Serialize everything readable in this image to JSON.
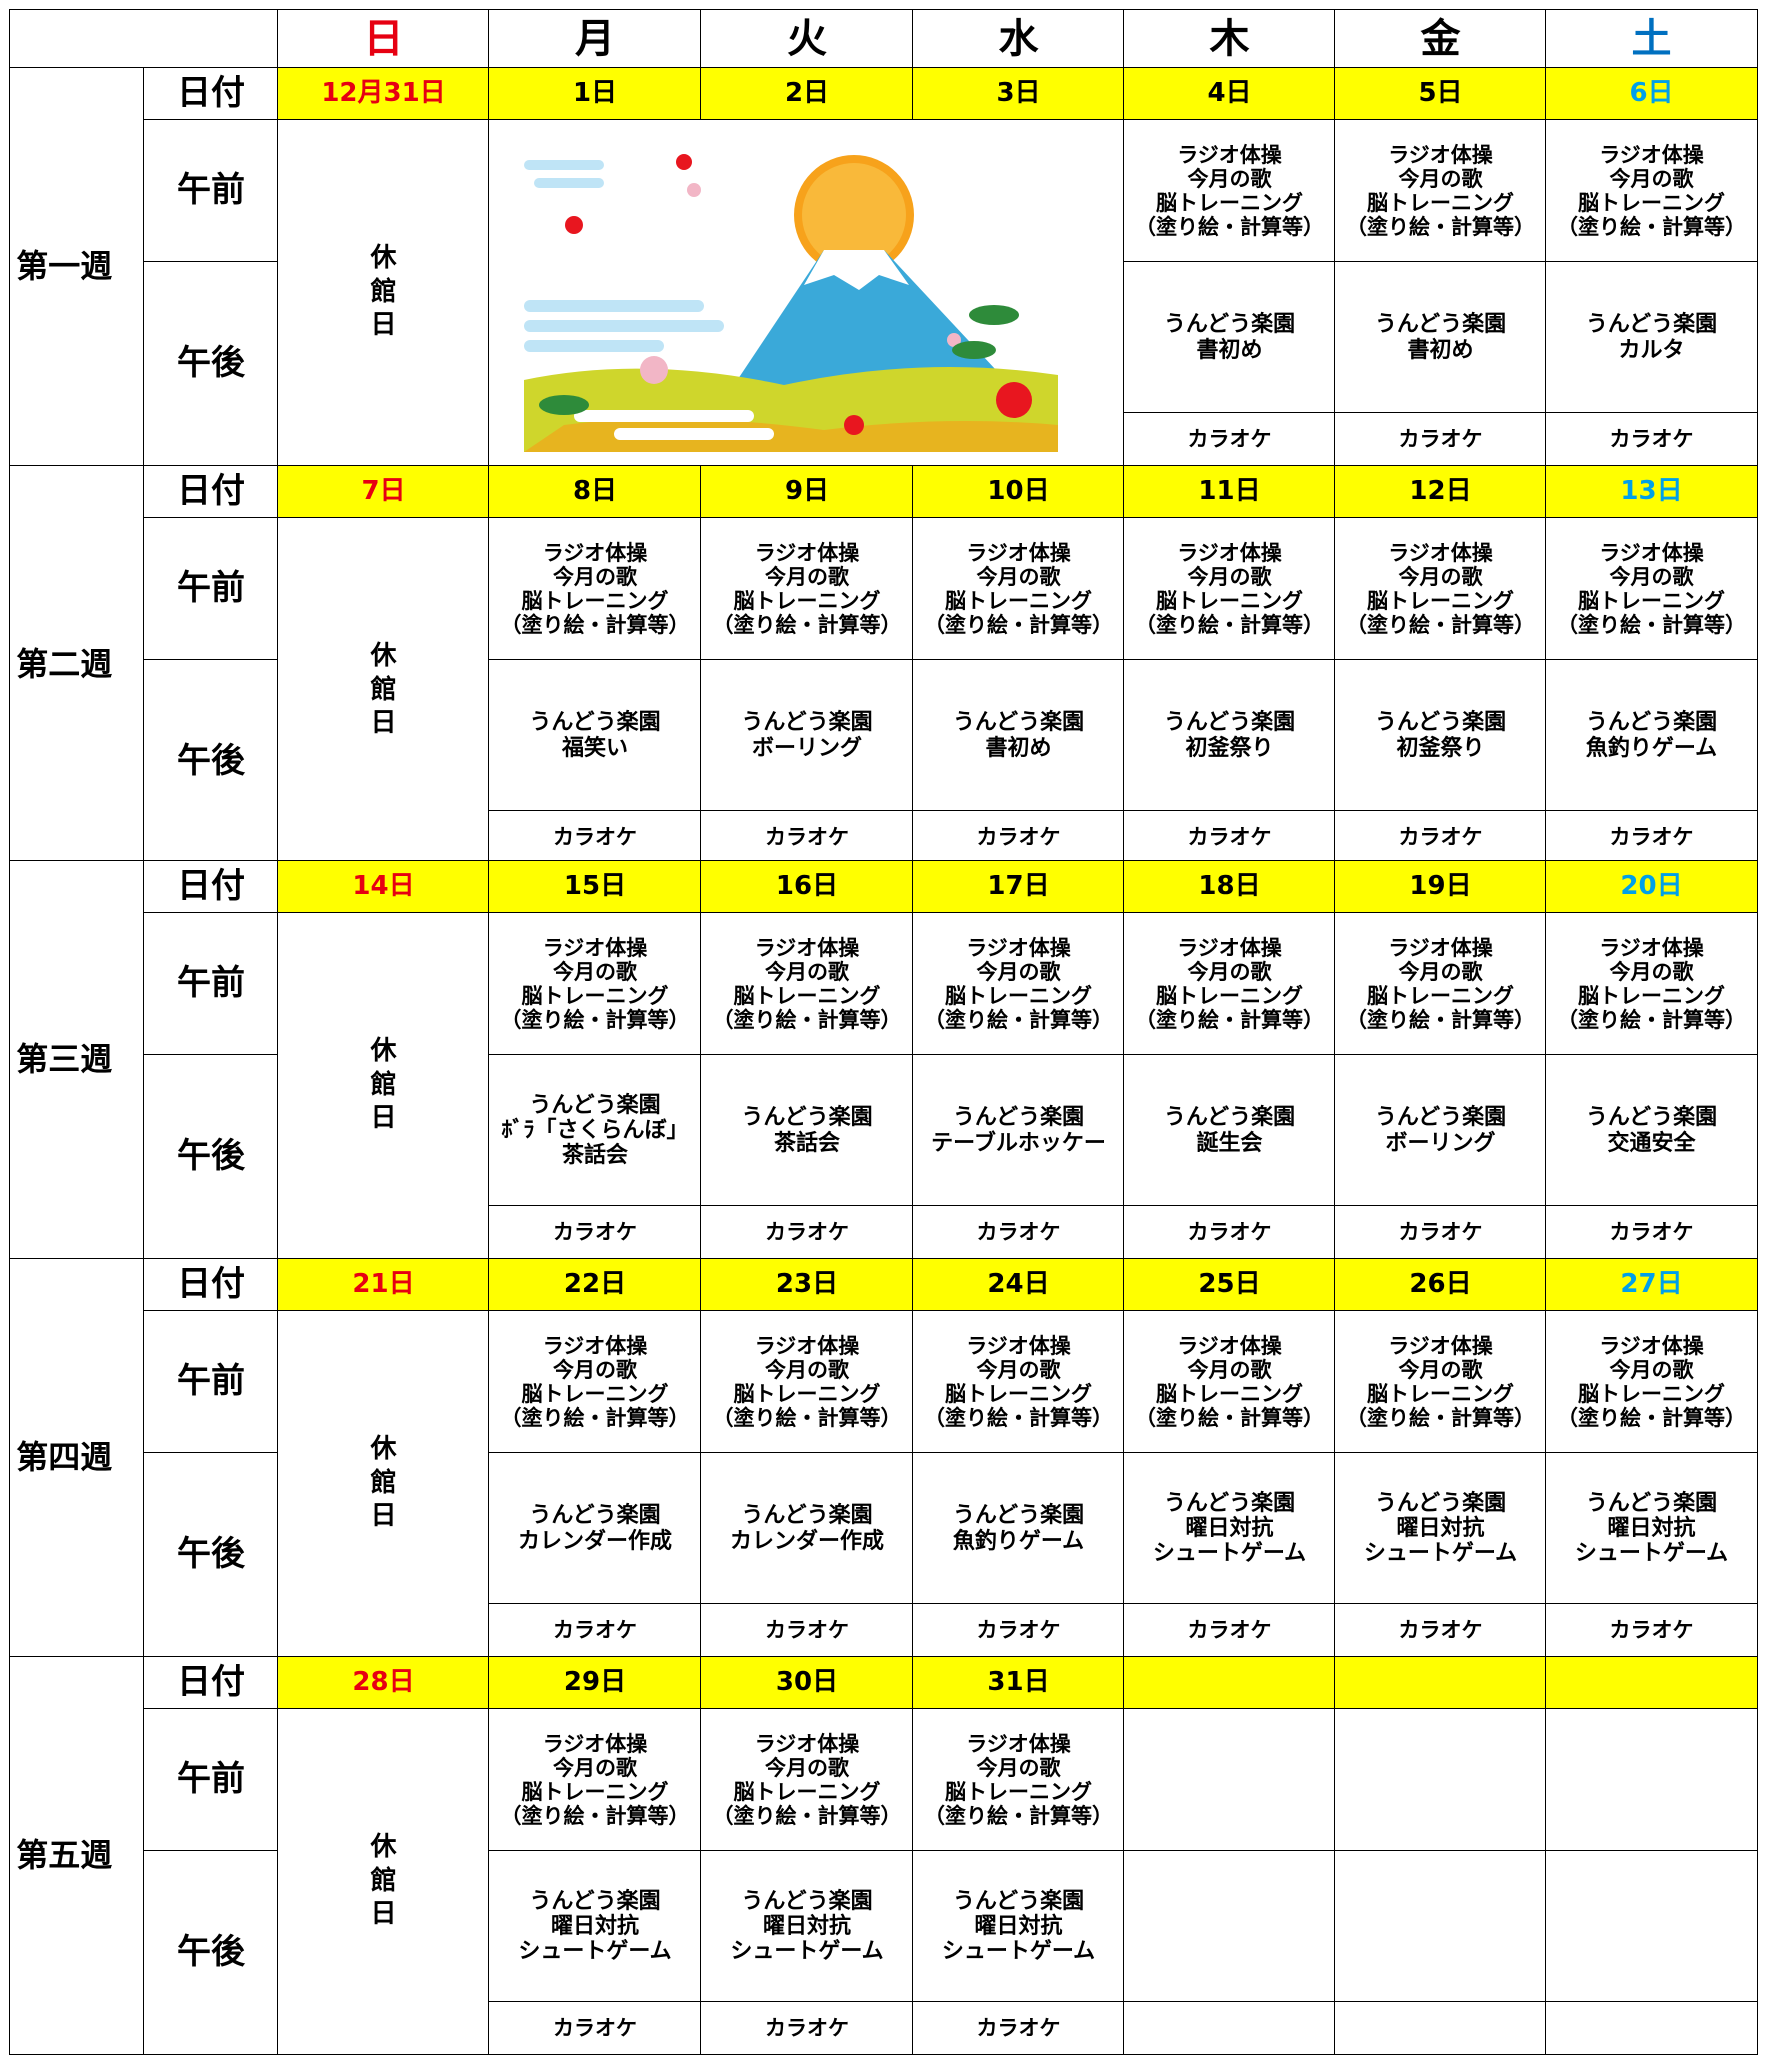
{
  "header": {
    "days": [
      "日",
      "月",
      "火",
      "水",
      "木",
      "金",
      "土"
    ]
  },
  "weeks": [
    {
      "label": "第一週",
      "date_label": "日付",
      "am_label": "午前",
      "pm_label": "午後",
      "closed": "休\n館\n日",
      "dates": [
        "12月31日",
        "1日",
        "2日",
        "3日",
        "4日",
        "5日",
        "6日"
      ],
      "am": [
        null,
        null,
        null,
        "ラジオ体操\n今月の歌\n脳トレーニング\n（塗り絵・計算等）",
        "ラジオ体操\n今月の歌\n脳トレーニング\n（塗り絵・計算等）",
        "ラジオ体操\n今月の歌\n脳トレーニング\n（塗り絵・計算等）"
      ],
      "pm": [
        null,
        null,
        null,
        "うんどう楽園\n書初め",
        "うんどう楽園\n書初め",
        "うんどう楽園\nカルタ"
      ],
      "karaoke": [
        null,
        null,
        null,
        "カラオケ",
        "カラオケ",
        "カラオケ"
      ]
    },
    {
      "label": "第二週",
      "date_label": "日付",
      "am_label": "午前",
      "pm_label": "午後",
      "closed": "休\n館\n日",
      "dates": [
        "7日",
        "8日",
        "9日",
        "10日",
        "11日",
        "12日",
        "13日"
      ],
      "am": [
        "ラジオ体操\n今月の歌\n脳トレーニング\n（塗り絵・計算等）",
        "ラジオ体操\n今月の歌\n脳トレーニング\n（塗り絵・計算等）",
        "ラジオ体操\n今月の歌\n脳トレーニング\n（塗り絵・計算等）",
        "ラジオ体操\n今月の歌\n脳トレーニング\n（塗り絵・計算等）",
        "ラジオ体操\n今月の歌\n脳トレーニング\n（塗り絵・計算等）",
        "ラジオ体操\n今月の歌\n脳トレーニング\n（塗り絵・計算等）"
      ],
      "pm": [
        "うんどう楽園\n福笑い",
        "うんどう楽園\nボーリング",
        "うんどう楽園\n書初め",
        "うんどう楽園\n初釜祭り",
        "うんどう楽園\n初釜祭り",
        "うんどう楽園\n魚釣りゲーム"
      ],
      "karaoke": [
        "カラオケ",
        "カラオケ",
        "カラオケ",
        "カラオケ",
        "カラオケ",
        "カラオケ"
      ]
    },
    {
      "label": "第三週",
      "date_label": "日付",
      "am_label": "午前",
      "pm_label": "午後",
      "closed": "休\n館\n日",
      "dates": [
        "14日",
        "15日",
        "16日",
        "17日",
        "18日",
        "19日",
        "20日"
      ],
      "am": [
        "ラジオ体操\n今月の歌\n脳トレーニング\n（塗り絵・計算等）",
        "ラジオ体操\n今月の歌\n脳トレーニング\n（塗り絵・計算等）",
        "ラジオ体操\n今月の歌\n脳トレーニング\n（塗り絵・計算等）",
        "ラジオ体操\n今月の歌\n脳トレーニング\n（塗り絵・計算等）",
        "ラジオ体操\n今月の歌\n脳トレーニング\n（塗り絵・計算等）",
        "ラジオ体操\n今月の歌\n脳トレーニング\n（塗り絵・計算等）"
      ],
      "pm": [
        "うんどう楽園\nﾎﾞﾗ「さくらんぼ」\n茶話会",
        "うんどう楽園\n茶話会",
        "うんどう楽園\nテーブルホッケー",
        "うんどう楽園\n誕生会",
        "うんどう楽園\nボーリング",
        "うんどう楽園\n交通安全"
      ],
      "karaoke": [
        "カラオケ",
        "カラオケ",
        "カラオケ",
        "カラオケ",
        "カラオケ",
        "カラオケ"
      ]
    },
    {
      "label": "第四週",
      "date_label": "日付",
      "am_label": "午前",
      "pm_label": "午後",
      "closed": "休\n館\n日",
      "dates": [
        "21日",
        "22日",
        "23日",
        "24日",
        "25日",
        "26日",
        "27日"
      ],
      "am": [
        "ラジオ体操\n今月の歌\n脳トレーニング\n（塗り絵・計算等）",
        "ラジオ体操\n今月の歌\n脳トレーニング\n（塗り絵・計算等）",
        "ラジオ体操\n今月の歌\n脳トレーニング\n（塗り絵・計算等）",
        "ラジオ体操\n今月の歌\n脳トレーニング\n（塗り絵・計算等）",
        "ラジオ体操\n今月の歌\n脳トレーニング\n（塗り絵・計算等）",
        "ラジオ体操\n今月の歌\n脳トレーニング\n（塗り絵・計算等）"
      ],
      "pm": [
        "うんどう楽園\nカレンダー作成",
        "うんどう楽園\nカレンダー作成",
        "うんどう楽園\n魚釣りゲーム",
        "うんどう楽園\n曜日対抗\nシュートゲーム",
        "うんどう楽園\n曜日対抗\nシュートゲーム",
        "うんどう楽園\n曜日対抗\nシュートゲーム"
      ],
      "karaoke": [
        "カラオケ",
        "カラオケ",
        "カラオケ",
        "カラオケ",
        "カラオケ",
        "カラオケ"
      ]
    },
    {
      "label": "第五週",
      "date_label": "日付",
      "am_label": "午前",
      "pm_label": "午後",
      "closed": "休\n館\n日",
      "dates": [
        "28日",
        "29日",
        "30日",
        "31日",
        null,
        null,
        null
      ],
      "am": [
        "ラジオ体操\n今月の歌\n脳トレーニング\n（塗り絵・計算等）",
        "ラジオ体操\n今月の歌\n脳トレーニング\n（塗り絵・計算等）",
        "ラジオ体操\n今月の歌\n脳トレーニング\n（塗り絵・計算等）",
        null,
        null,
        null
      ],
      "pm": [
        "うんどう楽園\n曜日対抗\nシュートゲーム",
        "うんどう楽園\n曜日対抗\nシュートゲーム",
        "うんどう楽園\n曜日対抗\nシュートゲーム",
        null,
        null,
        null
      ],
      "karaoke": [
        "カラオケ",
        "カラオケ",
        "カラオケ",
        null,
        null,
        null
      ]
    }
  ]
}
